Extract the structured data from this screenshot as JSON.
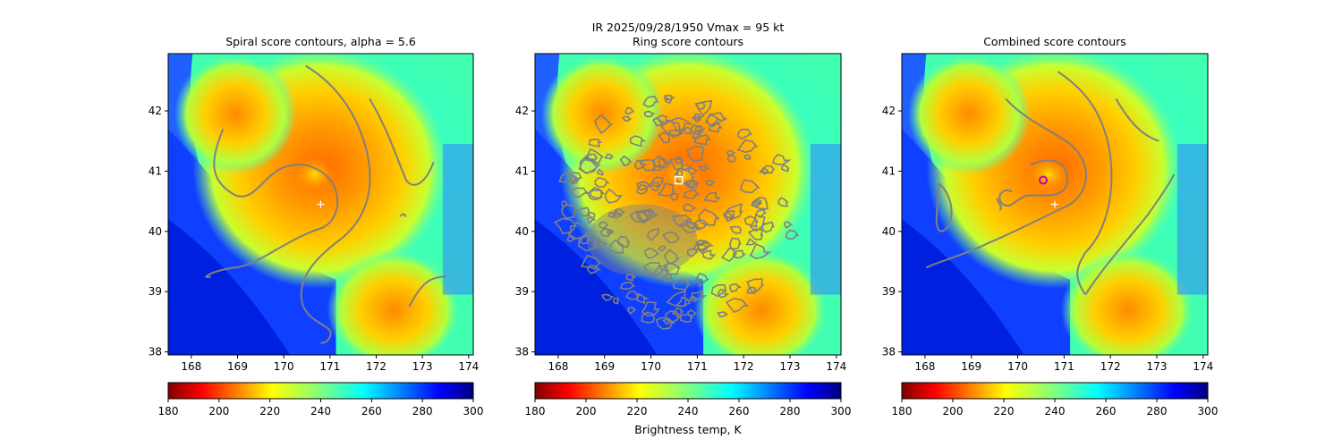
{
  "figure": {
    "suptitle_line1": "IR  2025/09/28/1950    Vmax = 95 kt",
    "colorbar_label": "Brightness temp, K"
  },
  "colors": {
    "contour": "#808080",
    "center_cross": "#ffffff",
    "ring_marker": "#ffffff",
    "combined_marker": "#c000c0"
  },
  "chart_data": [
    {
      "type": "heatmap",
      "title": "Spiral score contours, alpha =  5.6",
      "xlim": [
        167.5,
        174.1
      ],
      "ylim": [
        37.95,
        42.95
      ],
      "xticks": [
        "168",
        "169",
        "170",
        "171",
        "172",
        "173",
        "174"
      ],
      "yticks": [
        "38",
        "39",
        "40",
        "41",
        "42"
      ],
      "center_marker": {
        "lon": 170.8,
        "lat": 40.45
      },
      "colorbar": {
        "vmin": 180,
        "vmax": 300,
        "ticks": [
          "180",
          "200",
          "220",
          "240",
          "260",
          "280",
          "300"
        ],
        "cmap": "jet_r"
      }
    },
    {
      "type": "heatmap",
      "title": "Ring score contours",
      "xlim": [
        167.5,
        174.1
      ],
      "ylim": [
        37.95,
        42.95
      ],
      "xticks": [
        "168",
        "169",
        "170",
        "171",
        "172",
        "173",
        "174"
      ],
      "yticks": [
        "38",
        "39",
        "40",
        "41",
        "42"
      ],
      "center_marker": {
        "lon": 170.6,
        "lat": 40.85,
        "symbol": "square"
      },
      "colorbar": {
        "vmin": 180,
        "vmax": 300,
        "ticks": [
          "180",
          "200",
          "220",
          "240",
          "260",
          "280",
          "300"
        ],
        "cmap": "jet_r"
      }
    },
    {
      "type": "heatmap",
      "title": "Combined score contours",
      "xlim": [
        167.5,
        174.1
      ],
      "ylim": [
        37.95,
        42.95
      ],
      "xticks": [
        "168",
        "169",
        "170",
        "171",
        "172",
        "173",
        "174"
      ],
      "yticks": [
        "38",
        "39",
        "40",
        "41",
        "42"
      ],
      "center_marker": {
        "lon": 170.55,
        "lat": 40.85,
        "symbol": "circle"
      },
      "cross_marker": {
        "lon": 170.8,
        "lat": 40.45
      },
      "colorbar": {
        "vmin": 180,
        "vmax": 300,
        "ticks": [
          "180",
          "200",
          "220",
          "240",
          "260",
          "280",
          "300"
        ],
        "cmap": "jet_r"
      }
    }
  ]
}
